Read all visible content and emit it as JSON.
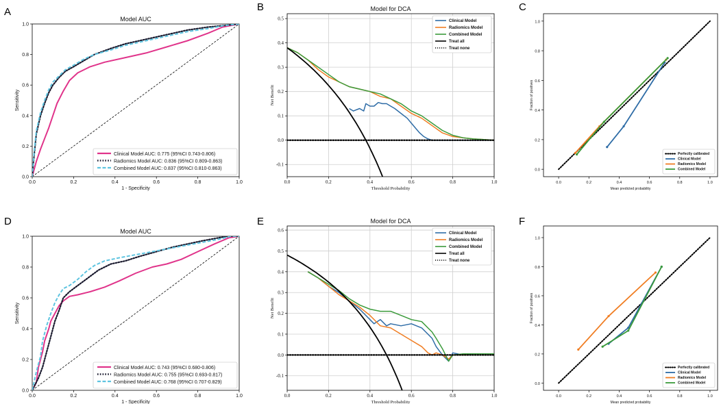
{
  "colors": {
    "clinical_roc": "#e0338a",
    "radiomics_roc": "#1a1a2e",
    "combined_roc": "#5ec4e0",
    "clinical": "#2e6ca6",
    "radiomics": "#f07d22",
    "combined": "#3a9a3a",
    "treat_all": "#000000",
    "grid": "#cfcfcf"
  },
  "chart_data": [
    {
      "panel": "A",
      "type": "line",
      "title": "Model AUC",
      "xlabel": "1 - Specificity",
      "ylabel": "Sensitivity",
      "xlim": [
        0,
        1
      ],
      "ylim": [
        0,
        1
      ],
      "xticks": [
        "0.0",
        "0.2",
        "0.4",
        "0.6",
        "0.8",
        "1.0"
      ],
      "yticks": [
        "0.0",
        "0.2",
        "0.4",
        "0.6",
        "0.8",
        "1.0"
      ],
      "legend_position": "bottom-right",
      "series": [
        {
          "name": "Clinical Model AUC: 0.775 (95%CI 0.743-0.806)",
          "style": "solid",
          "color_key": "clinical_roc",
          "x": [
            0,
            0.01,
            0.02,
            0.04,
            0.06,
            0.08,
            0.1,
            0.12,
            0.15,
            0.18,
            0.22,
            0.28,
            0.35,
            0.45,
            0.55,
            0.65,
            0.75,
            0.85,
            0.92,
            1.0
          ],
          "y": [
            0,
            0.05,
            0.1,
            0.18,
            0.25,
            0.32,
            0.4,
            0.48,
            0.56,
            0.63,
            0.68,
            0.72,
            0.75,
            0.78,
            0.81,
            0.85,
            0.89,
            0.94,
            0.98,
            1.0
          ]
        },
        {
          "name": "Radiomics Model AUC: 0.836 (95%CI 0.809-0.863)",
          "style": "dotted",
          "color_key": "radiomics_roc",
          "x": [
            0,
            0.01,
            0.02,
            0.04,
            0.06,
            0.08,
            0.1,
            0.13,
            0.16,
            0.2,
            0.25,
            0.3,
            0.38,
            0.45,
            0.55,
            0.65,
            0.75,
            0.85,
            0.93,
            1.0
          ],
          "y": [
            0,
            0.15,
            0.28,
            0.4,
            0.48,
            0.55,
            0.6,
            0.65,
            0.69,
            0.72,
            0.76,
            0.8,
            0.84,
            0.87,
            0.9,
            0.93,
            0.96,
            0.98,
            0.99,
            1.0
          ]
        },
        {
          "name": "Combined Model AUC: 0.837 (95%CI 0.810-0.863)",
          "style": "dashed",
          "color_key": "combined_roc",
          "x": [
            0,
            0.01,
            0.02,
            0.04,
            0.06,
            0.08,
            0.1,
            0.13,
            0.16,
            0.2,
            0.25,
            0.3,
            0.38,
            0.45,
            0.55,
            0.65,
            0.75,
            0.85,
            0.93,
            1.0
          ],
          "y": [
            0,
            0.17,
            0.3,
            0.42,
            0.5,
            0.57,
            0.62,
            0.66,
            0.7,
            0.73,
            0.77,
            0.8,
            0.83,
            0.86,
            0.89,
            0.92,
            0.95,
            0.97,
            0.99,
            1.0
          ]
        }
      ]
    },
    {
      "panel": "B",
      "type": "line",
      "title": "Model for DCA",
      "xlabel": "Threshold Probability",
      "ylabel": "Net Benefit",
      "xlim": [
        0,
        1
      ],
      "ylim": [
        -0.15,
        0.52
      ],
      "xticks": [
        "0.0",
        "0.2",
        "0.4",
        "0.6",
        "0.8",
        "1.0"
      ],
      "yticks": [
        "-0.1",
        "0.0",
        "0.1",
        "0.2",
        "0.3",
        "0.4",
        "0.5"
      ],
      "legend_position": "top-right",
      "series": [
        {
          "name": "Clinical Model",
          "style": "solid",
          "color_key": "clinical",
          "x": [
            0.3,
            0.32,
            0.35,
            0.37,
            0.38,
            0.4,
            0.42,
            0.44,
            0.46,
            0.48,
            0.5,
            0.52,
            0.55,
            0.58,
            0.6,
            0.62,
            0.64,
            0.66,
            0.68,
            0.7,
            0.75,
            0.8,
            0.9,
            1.0
          ],
          "y": [
            0.13,
            0.12,
            0.13,
            0.12,
            0.15,
            0.14,
            0.14,
            0.155,
            0.15,
            0.15,
            0.14,
            0.13,
            0.11,
            0.09,
            0.07,
            0.05,
            0.03,
            0.015,
            0.005,
            0.0,
            0.0,
            0.0,
            0.0,
            0.0
          ]
        },
        {
          "name": "Radiomics Model",
          "style": "solid",
          "color_key": "radiomics",
          "x": [
            0,
            0.05,
            0.1,
            0.15,
            0.2,
            0.25,
            0.3,
            0.35,
            0.4,
            0.45,
            0.5,
            0.55,
            0.6,
            0.65,
            0.7,
            0.75,
            0.8,
            0.85,
            0.9,
            0.95,
            1.0
          ],
          "y": [
            0.38,
            0.36,
            0.33,
            0.29,
            0.26,
            0.24,
            0.22,
            0.21,
            0.2,
            0.18,
            0.17,
            0.14,
            0.11,
            0.09,
            0.06,
            0.03,
            0.015,
            0.01,
            0.005,
            0.003,
            0.0
          ]
        },
        {
          "name": "Combined Model",
          "style": "solid",
          "color_key": "combined",
          "x": [
            0,
            0.05,
            0.1,
            0.15,
            0.2,
            0.25,
            0.3,
            0.35,
            0.4,
            0.45,
            0.5,
            0.55,
            0.6,
            0.65,
            0.7,
            0.75,
            0.8,
            0.85,
            0.9,
            0.95,
            1.0
          ],
          "y": [
            0.38,
            0.36,
            0.33,
            0.3,
            0.27,
            0.24,
            0.22,
            0.21,
            0.2,
            0.19,
            0.17,
            0.15,
            0.12,
            0.1,
            0.07,
            0.04,
            0.02,
            0.01,
            0.005,
            0.003,
            0.0
          ]
        },
        {
          "name": "Treat all",
          "style": "solid",
          "color_key": "treat_all",
          "prevalence": 0.38
        },
        {
          "name": "Treat none",
          "style": "dotted",
          "color_key": "treat_all",
          "constant": 0
        }
      ]
    },
    {
      "panel": "C",
      "type": "line",
      "title": "",
      "xlabel": "Mean predicted probability",
      "ylabel": "Fraction of positives",
      "xlim": [
        -0.1,
        1.05
      ],
      "ylim": [
        -0.05,
        1.05
      ],
      "xticks": [
        "0.0",
        "0.2",
        "0.4",
        "0.6",
        "0.8",
        "1.0"
      ],
      "yticks": [
        "0.0",
        "0.2",
        "0.4",
        "0.6",
        "0.8",
        "1.0"
      ],
      "legend_position": "bottom-right",
      "series": [
        {
          "name": "Perfectly calibrated",
          "style": "dotted",
          "color_key": "treat_all",
          "x": [
            0,
            1
          ],
          "y": [
            0,
            1
          ]
        },
        {
          "name": "Clinical Model",
          "style": "solid",
          "color_key": "clinical",
          "x": [
            0.32,
            0.43,
            0.7
          ],
          "y": [
            0.15,
            0.29,
            0.72
          ]
        },
        {
          "name": "Radiomics Model",
          "style": "solid",
          "color_key": "radiomics",
          "x": [
            0.11,
            0.27,
            0.71
          ],
          "y": [
            0.11,
            0.29,
            0.74
          ]
        },
        {
          "name": "Combined Model",
          "style": "solid",
          "color_key": "combined",
          "x": [
            0.12,
            0.3,
            0.72
          ],
          "y": [
            0.1,
            0.32,
            0.75
          ]
        }
      ]
    },
    {
      "panel": "D",
      "type": "line",
      "title": "Model AUC",
      "xlabel": "1 - Specificity",
      "ylabel": "Sensitivity",
      "xlim": [
        0,
        1
      ],
      "ylim": [
        0,
        1
      ],
      "xticks": [
        "0.0",
        "0.2",
        "0.4",
        "0.6",
        "0.8",
        "1.0"
      ],
      "yticks": [
        "0.0",
        "0.2",
        "0.4",
        "0.6",
        "0.8",
        "1.0"
      ],
      "legend_position": "bottom-right",
      "series": [
        {
          "name": "Clinical Model AUC: 0.743 (95%CI 0.680-0.806)",
          "style": "solid",
          "color_key": "clinical_roc",
          "x": [
            0,
            0.02,
            0.03,
            0.05,
            0.06,
            0.08,
            0.09,
            0.11,
            0.13,
            0.15,
            0.18,
            0.22,
            0.28,
            0.35,
            0.42,
            0.5,
            0.58,
            0.65,
            0.72,
            0.8,
            0.88,
            0.95,
            1.0
          ],
          "y": [
            0,
            0.05,
            0.15,
            0.25,
            0.32,
            0.4,
            0.45,
            0.5,
            0.55,
            0.58,
            0.61,
            0.62,
            0.64,
            0.67,
            0.71,
            0.76,
            0.8,
            0.82,
            0.85,
            0.9,
            0.95,
            0.99,
            1.0
          ]
        },
        {
          "name": "Radiomics Model AUC: 0.755 (95%CI 0.693-0.817)",
          "style": "dotted",
          "color_key": "radiomics_roc",
          "x": [
            0,
            0.03,
            0.05,
            0.07,
            0.09,
            0.11,
            0.13,
            0.15,
            0.18,
            0.22,
            0.27,
            0.32,
            0.38,
            0.45,
            0.52,
            0.6,
            0.68,
            0.75,
            0.82,
            0.9,
            0.95,
            1.0
          ],
          "y": [
            0,
            0.08,
            0.15,
            0.25,
            0.35,
            0.45,
            0.52,
            0.6,
            0.64,
            0.68,
            0.73,
            0.78,
            0.82,
            0.84,
            0.87,
            0.9,
            0.93,
            0.95,
            0.97,
            0.99,
            1.0,
            1.0
          ]
        },
        {
          "name": "Combined Model AUC: 0.768 (95%CI 0.707-0.829)",
          "style": "dashed",
          "color_key": "combined_roc",
          "x": [
            0,
            0.02,
            0.04,
            0.05,
            0.07,
            0.09,
            0.11,
            0.13,
            0.15,
            0.18,
            0.22,
            0.26,
            0.3,
            0.35,
            0.42,
            0.5,
            0.58,
            0.66,
            0.74,
            0.82,
            0.9,
            0.96,
            1.0
          ],
          "y": [
            0,
            0.12,
            0.22,
            0.32,
            0.42,
            0.5,
            0.57,
            0.62,
            0.66,
            0.68,
            0.72,
            0.77,
            0.81,
            0.84,
            0.86,
            0.88,
            0.9,
            0.92,
            0.94,
            0.96,
            0.98,
            1.0,
            1.0
          ]
        }
      ]
    },
    {
      "panel": "E",
      "type": "line",
      "title": "Model for DCA",
      "xlabel": "Threshold Probability",
      "ylabel": "Net Benefit",
      "xlim": [
        0,
        1
      ],
      "ylim": [
        -0.17,
        0.62
      ],
      "xticks": [
        "0.0",
        "0.2",
        "0.4",
        "0.6",
        "0.8",
        "1.0"
      ],
      "yticks": [
        "-0.1",
        "0.0",
        "0.1",
        "0.2",
        "0.3",
        "0.4",
        "0.5",
        "0.6"
      ],
      "legend_position": "top-right",
      "series": [
        {
          "name": "Clinical Model",
          "style": "solid",
          "color_key": "clinical",
          "x": [
            0.1,
            0.15,
            0.2,
            0.25,
            0.3,
            0.35,
            0.4,
            0.42,
            0.45,
            0.48,
            0.5,
            0.55,
            0.6,
            0.65,
            0.68,
            0.7,
            0.72,
            0.75,
            0.78,
            0.8,
            0.85,
            0.9,
            1.0
          ],
          "y": [
            0.4,
            0.37,
            0.33,
            0.3,
            0.26,
            0.22,
            0.17,
            0.15,
            0.17,
            0.14,
            0.15,
            0.14,
            0.15,
            0.13,
            0.1,
            0.08,
            0.04,
            0.0,
            -0.03,
            0.01,
            0.0,
            0.005,
            0.005
          ]
        },
        {
          "name": "Radiomics Model",
          "style": "solid",
          "color_key": "radiomics",
          "x": [
            0.1,
            0.15,
            0.2,
            0.25,
            0.3,
            0.35,
            0.4,
            0.45,
            0.5,
            0.55,
            0.6,
            0.65,
            0.68,
            0.7,
            0.72,
            0.75,
            0.78,
            0.8,
            0.85,
            0.87
          ],
          "y": [
            0.4,
            0.37,
            0.33,
            0.29,
            0.26,
            0.23,
            0.19,
            0.14,
            0.13,
            0.1,
            0.07,
            0.04,
            0.01,
            0.0,
            0.01,
            0.0,
            -0.02,
            0.0,
            0.0,
            0.0
          ]
        },
        {
          "name": "Combined Model",
          "style": "solid",
          "color_key": "combined",
          "x": [
            0.1,
            0.15,
            0.2,
            0.25,
            0.3,
            0.35,
            0.4,
            0.45,
            0.5,
            0.55,
            0.6,
            0.65,
            0.68,
            0.7,
            0.72,
            0.75,
            0.78,
            0.8,
            0.85,
            0.9,
            1.0
          ],
          "y": [
            0.4,
            0.37,
            0.34,
            0.31,
            0.27,
            0.24,
            0.22,
            0.21,
            0.21,
            0.19,
            0.17,
            0.16,
            0.13,
            0.11,
            0.08,
            0.03,
            -0.03,
            0.0,
            0.005,
            0.005,
            0.005
          ]
        },
        {
          "name": "Treat all",
          "style": "solid",
          "color_key": "treat_all",
          "prevalence": 0.48
        },
        {
          "name": "Treat none",
          "style": "dotted",
          "color_key": "treat_all",
          "constant": 0
        }
      ]
    },
    {
      "panel": "F",
      "type": "line",
      "title": "",
      "xlabel": "Mean predicted probability",
      "ylabel": "Fraction of positives",
      "xlim": [
        -0.1,
        1.05
      ],
      "ylim": [
        -0.05,
        1.08
      ],
      "xticks": [
        "0.0",
        "0.2",
        "0.4",
        "0.6",
        "0.8",
        "1.0"
      ],
      "yticks": [
        "0.0",
        "0.2",
        "0.4",
        "0.6",
        "0.8",
        "1.0"
      ],
      "legend_position": "bottom-right",
      "series": [
        {
          "name": "Perfectly calibrated",
          "style": "dotted",
          "color_key": "treat_all",
          "x": [
            0,
            1
          ],
          "y": [
            0,
            1
          ]
        },
        {
          "name": "Clinical Model",
          "style": "solid",
          "color_key": "clinical",
          "x": [
            0.33,
            0.46,
            0.68
          ],
          "y": [
            0.27,
            0.38,
            0.8
          ]
        },
        {
          "name": "Radiomics Model",
          "style": "solid",
          "color_key": "radiomics",
          "x": [
            0.13,
            0.33,
            0.64
          ],
          "y": [
            0.23,
            0.46,
            0.76
          ]
        },
        {
          "name": "Combined Model",
          "style": "solid",
          "color_key": "combined",
          "x": [
            0.29,
            0.46,
            0.68
          ],
          "y": [
            0.25,
            0.36,
            0.8
          ]
        }
      ]
    }
  ]
}
